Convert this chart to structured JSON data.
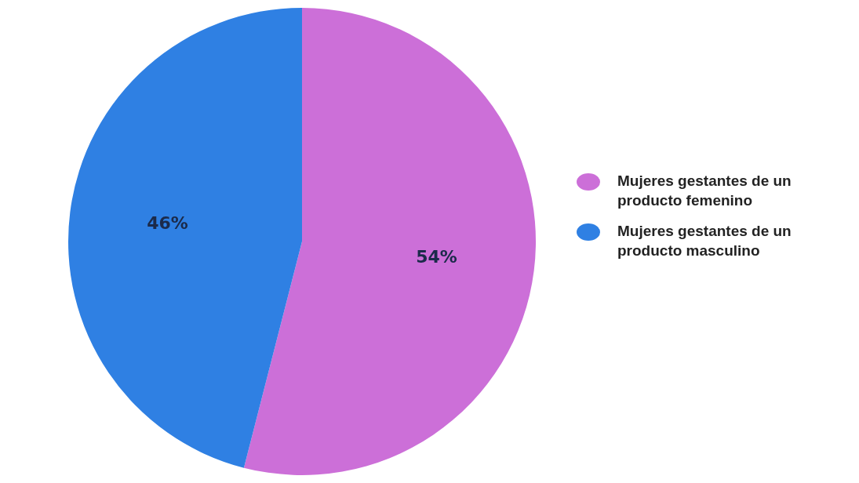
{
  "chart_data": {
    "type": "pie",
    "categories": [
      "Mujeres gestantes de un producto femenino",
      "Mujeres gestantes de un producto masculino"
    ],
    "values": [
      54,
      46
    ],
    "colors": [
      "#cc6fd8",
      "#2f80e3"
    ],
    "value_labels": [
      "54%",
      "46%"
    ],
    "legend": "right"
  }
}
